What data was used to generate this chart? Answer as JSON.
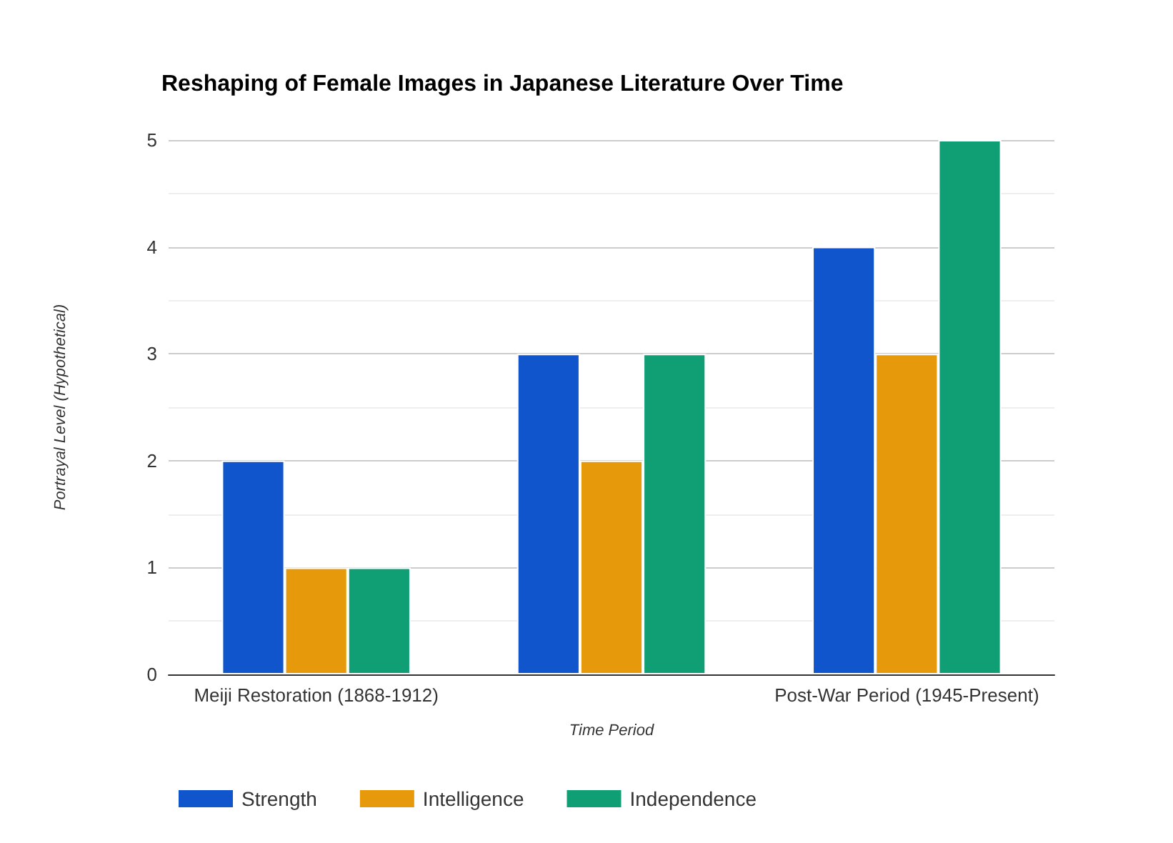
{
  "chart_data": {
    "type": "bar",
    "title": "Reshaping of Female Images in Japanese Literature Over Time",
    "xlabel": "Time Period",
    "ylabel": "Portrayal Level (Hypothetical)",
    "categories": [
      "Meiji Restoration (1868-1912)",
      null,
      "Post-War Period (1945-Present)"
    ],
    "series": [
      {
        "name": "Strength",
        "color": "#1155cc",
        "values": [
          2,
          3,
          4
        ]
      },
      {
        "name": "Intelligence",
        "color": "#e69a0b",
        "values": [
          1,
          2,
          3
        ]
      },
      {
        "name": "Independence",
        "color": "#109e75",
        "values": [
          1,
          3,
          5
        ]
      }
    ],
    "ylim": [
      0,
      5
    ],
    "yticks": [
      0,
      1,
      2,
      3,
      4,
      5
    ],
    "grid": "y",
    "legend": "bottom"
  }
}
